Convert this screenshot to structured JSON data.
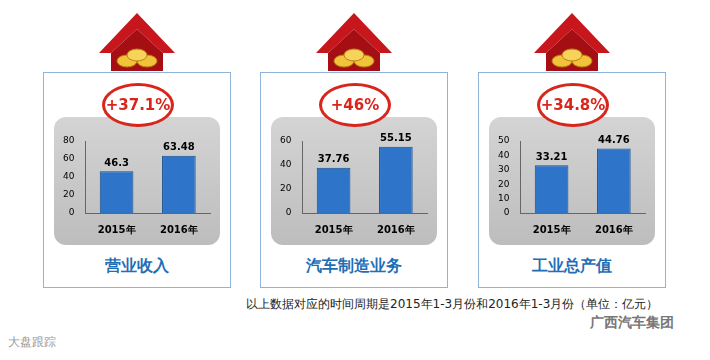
{
  "chart_data": [
    {
      "type": "bar",
      "title": "营业收入",
      "annotation": "+37.1%",
      "categories": [
        "2015年",
        "2016年"
      ],
      "values": [
        46.3,
        63.48
      ],
      "color": "#2e75c9",
      "ylim": [
        0,
        80
      ],
      "yticks": [
        0,
        20,
        40,
        60,
        80
      ],
      "grid": false,
      "data_labels": true
    },
    {
      "type": "bar",
      "title": "汽车制造业务",
      "annotation": "+46%",
      "categories": [
        "2015年",
        "2016年"
      ],
      "values": [
        37.76,
        55.15
      ],
      "color": "#2e75c9",
      "ylim": [
        0,
        60
      ],
      "yticks": [
        0,
        20,
        40,
        60
      ],
      "grid": false,
      "data_labels": true
    },
    {
      "type": "bar",
      "title": "工业总产值",
      "annotation": "+34.8%",
      "categories": [
        "2015年",
        "2016年"
      ],
      "values": [
        33.21,
        44.76
      ],
      "color": "#2e75c9",
      "ylim": [
        0,
        50
      ],
      "yticks": [
        0,
        10,
        20,
        30,
        40,
        50
      ],
      "grid": false,
      "data_labels": true
    }
  ],
  "footnote": "以上数据对应的时间周期是2015年1-3月份和2016年1-3月份（单位：亿元）",
  "watermarks": [
    "大盘跟踪",
    "广西汽车集团"
  ]
}
